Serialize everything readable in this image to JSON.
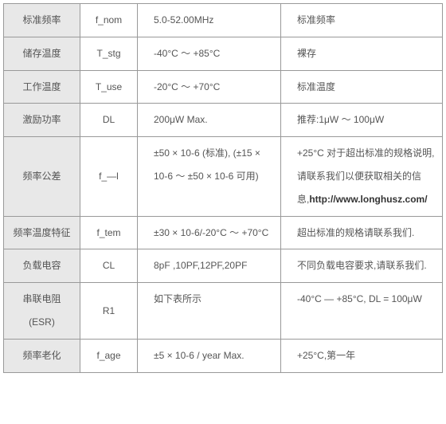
{
  "table": {
    "rows": [
      {
        "label": "标准频率",
        "symbol": "f_nom",
        "value": "5.0-52.00MHz",
        "note": "标准频率"
      },
      {
        "label": "储存温度",
        "symbol": "T_stg",
        "value": "-40°C ～ +85°C",
        "note": "裸存"
      },
      {
        "label": "工作温度",
        "symbol": "T_use",
        "value": "-20°C ～ +70°C",
        "note": "标准温度"
      },
      {
        "label": "激励功率",
        "symbol": "DL",
        "value": "200μW Max.",
        "note": "推荐:1μW ～ 100μW"
      },
      {
        "label": "频率公差",
        "symbol": "f_—l",
        "value": "±50 × 10-6 (标准), (±15 × 10-6 ～ ±50 × 10-6 可用)",
        "note_pre": "+25°C 对于超出标准的规格说明, 请联系我们以便获取相关的信息,",
        "note_bold": "http://www.longhusz.com/"
      },
      {
        "label": "频率温度特征",
        "symbol": "f_tem",
        "value": "±30 × 10-6/-20°C ～ +70°C",
        "note": "超出标准的规格请联系我们."
      },
      {
        "label": "负载电容",
        "symbol": "CL",
        "value": "8pF ,10PF,12PF,20PF",
        "note": "不同负载电容要求,请联系我们."
      },
      {
        "label": "串联电阻(ESR)",
        "symbol": "R1",
        "value": "如下表所示",
        "note": "-40°C — +85°C, DL = 100μW"
      },
      {
        "label": "频率老化",
        "symbol": "f_age",
        "value": "±5 × 10-6 / year Max.",
        "note": "+25°C,第一年"
      }
    ]
  }
}
